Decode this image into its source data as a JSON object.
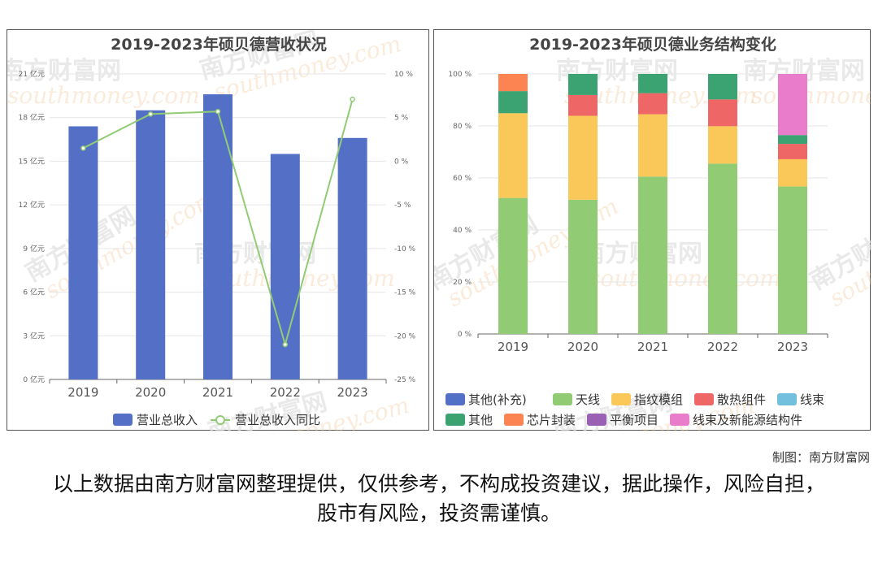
{
  "credit": "制图：南方财富网",
  "disclaimer": "以上数据由南方财富网整理提供，仅供参考，不构成投资建议，据此操作，风险自担，股市有风险，投资需谨慎。",
  "watermark": {
    "cn": "南方财富网",
    "en": "southmoney.com"
  },
  "chart_data": [
    {
      "type": "bar+line",
      "title": "2019-2023年硕贝德营收状况",
      "categories": [
        "2019",
        "2020",
        "2021",
        "2022",
        "2023"
      ],
      "series": [
        {
          "name": "营业总收入",
          "axis": "left",
          "unit": "亿元",
          "values": [
            17.4,
            18.5,
            19.6,
            15.5,
            16.6
          ],
          "color": "#5470c6"
        },
        {
          "name": "营业总收入同比",
          "axis": "right",
          "unit": "%",
          "values": [
            1.5,
            5.4,
            5.7,
            -21.0,
            7.1
          ],
          "color": "#91cc75"
        }
      ],
      "y_left": {
        "min": 0,
        "max": 21,
        "ticks": [
          "0 亿元",
          "3 亿元",
          "6 亿元",
          "9 亿元",
          "12 亿元",
          "15 亿元",
          "18 亿元",
          "21 亿元"
        ]
      },
      "y_right": {
        "min": -25,
        "max": 10,
        "ticks": [
          "-25 %",
          "-20 %",
          "-15 %",
          "-10 %",
          "-5 %",
          "0 %",
          "5 %",
          "10 %"
        ]
      },
      "legend": "bottom"
    },
    {
      "type": "stacked-bar",
      "title": "2019-2023年硕贝德业务结构变化",
      "categories": [
        "2019",
        "2020",
        "2021",
        "2022",
        "2023"
      ],
      "y": {
        "min": 0,
        "max": 100,
        "ticks": [
          "0 %",
          "20 %",
          "40 %",
          "60 %",
          "80 %",
          "100 %"
        ]
      },
      "series": [
        {
          "name": "其他(补充)",
          "color": "#5470c6",
          "values": [
            0,
            0,
            0,
            0,
            0
          ]
        },
        {
          "name": "天线",
          "color": "#91cc75",
          "values": [
            52.3,
            51.6,
            60.5,
            65.5,
            56.7
          ]
        },
        {
          "name": "指纹模组",
          "color": "#fac858",
          "values": [
            32.6,
            32.3,
            24.0,
            14.4,
            10.5
          ]
        },
        {
          "name": "散热组件",
          "color": "#ee6666",
          "values": [
            0,
            8.0,
            8.1,
            10.3,
            5.9
          ]
        },
        {
          "name": "线束",
          "color": "#73c0de",
          "values": [
            0,
            0,
            0,
            0,
            0
          ]
        },
        {
          "name": "其他",
          "color": "#3ba272",
          "values": [
            8.5,
            8.1,
            7.4,
            9.8,
            3.4
          ]
        },
        {
          "name": "芯片封装",
          "color": "#fc8452",
          "values": [
            6.6,
            0,
            0,
            0,
            0
          ]
        },
        {
          "name": "平衡项目",
          "color": "#9a60b4",
          "values": [
            0,
            0,
            0,
            0,
            0
          ]
        },
        {
          "name": "线束及新能源结构件",
          "color": "#ea7ccc",
          "values": [
            0,
            0,
            0,
            0,
            23.5
          ]
        }
      ],
      "legend": "bottom"
    }
  ]
}
